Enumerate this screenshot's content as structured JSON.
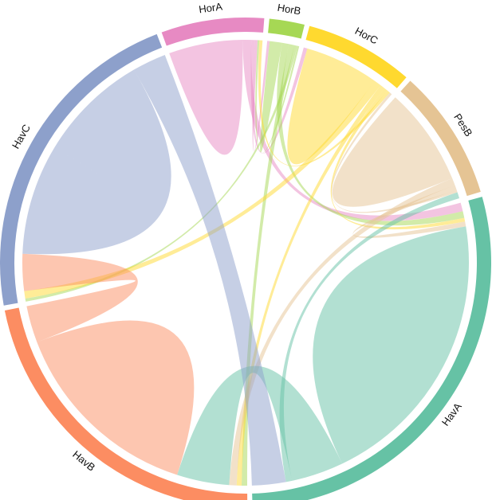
{
  "chart_data": {
    "type": "chord",
    "title": "",
    "segments": [
      {
        "name": "HorA",
        "color": "#E78AC3"
      },
      {
        "name": "HorB",
        "color": "#A6D854"
      },
      {
        "name": "HorC",
        "color": "#FFD92F"
      },
      {
        "name": "PesB",
        "color": "#E5C494"
      },
      {
        "name": "HavA",
        "color": "#66C2A5"
      },
      {
        "name": "HavB",
        "color": "#FC8D62"
      },
      {
        "name": "HavC",
        "color": "#8DA0CB"
      }
    ],
    "flows": [
      {
        "from": "HorA",
        "to": "HorA",
        "value": 0.12
      },
      {
        "from": "HorA",
        "to": "HavA",
        "value": 0.028
      },
      {
        "from": "HorA",
        "to": "HorC",
        "value": 0.012
      },
      {
        "from": "HorA",
        "to": "HorB",
        "value": 0.008
      },
      {
        "from": "HorB",
        "to": "HorB",
        "value": 0.02
      },
      {
        "from": "HorB",
        "to": "HavA",
        "value": 0.022
      },
      {
        "from": "HorB",
        "to": "HavB",
        "value": 0.018
      },
      {
        "from": "HorB",
        "to": "HavC",
        "value": 0.01
      },
      {
        "from": "HorB",
        "to": "HorA",
        "value": 0.006
      },
      {
        "from": "HorC",
        "to": "HorC",
        "value": 0.12
      },
      {
        "from": "HorC",
        "to": "HavC",
        "value": 0.024
      },
      {
        "from": "HorC",
        "to": "HavB",
        "value": 0.016
      },
      {
        "from": "HorC",
        "to": "HavA",
        "value": 0.012
      },
      {
        "from": "HorC",
        "to": "HorA",
        "value": 0.01
      },
      {
        "from": "PesB",
        "to": "PesB",
        "value": 0.16
      },
      {
        "from": "PesB",
        "to": "HavB",
        "value": 0.024
      },
      {
        "from": "PesB",
        "to": "HavA",
        "value": 0.016
      },
      {
        "from": "PesB",
        "to": "HorC",
        "value": 0.008
      },
      {
        "from": "HavA",
        "to": "HavA",
        "value": 0.46
      },
      {
        "from": "HavA",
        "to": "HavB",
        "value": 0.17
      },
      {
        "from": "HavA",
        "to": "PesB",
        "value": 0.02
      },
      {
        "from": "HavB",
        "to": "HavB",
        "value": 0.32
      },
      {
        "from": "HavB",
        "to": "HavC",
        "value": 0.12
      },
      {
        "from": "HavC",
        "to": "HavC",
        "value": 0.36
      },
      {
        "from": "HavC",
        "to": "HavA",
        "value": 0.11
      }
    ]
  }
}
